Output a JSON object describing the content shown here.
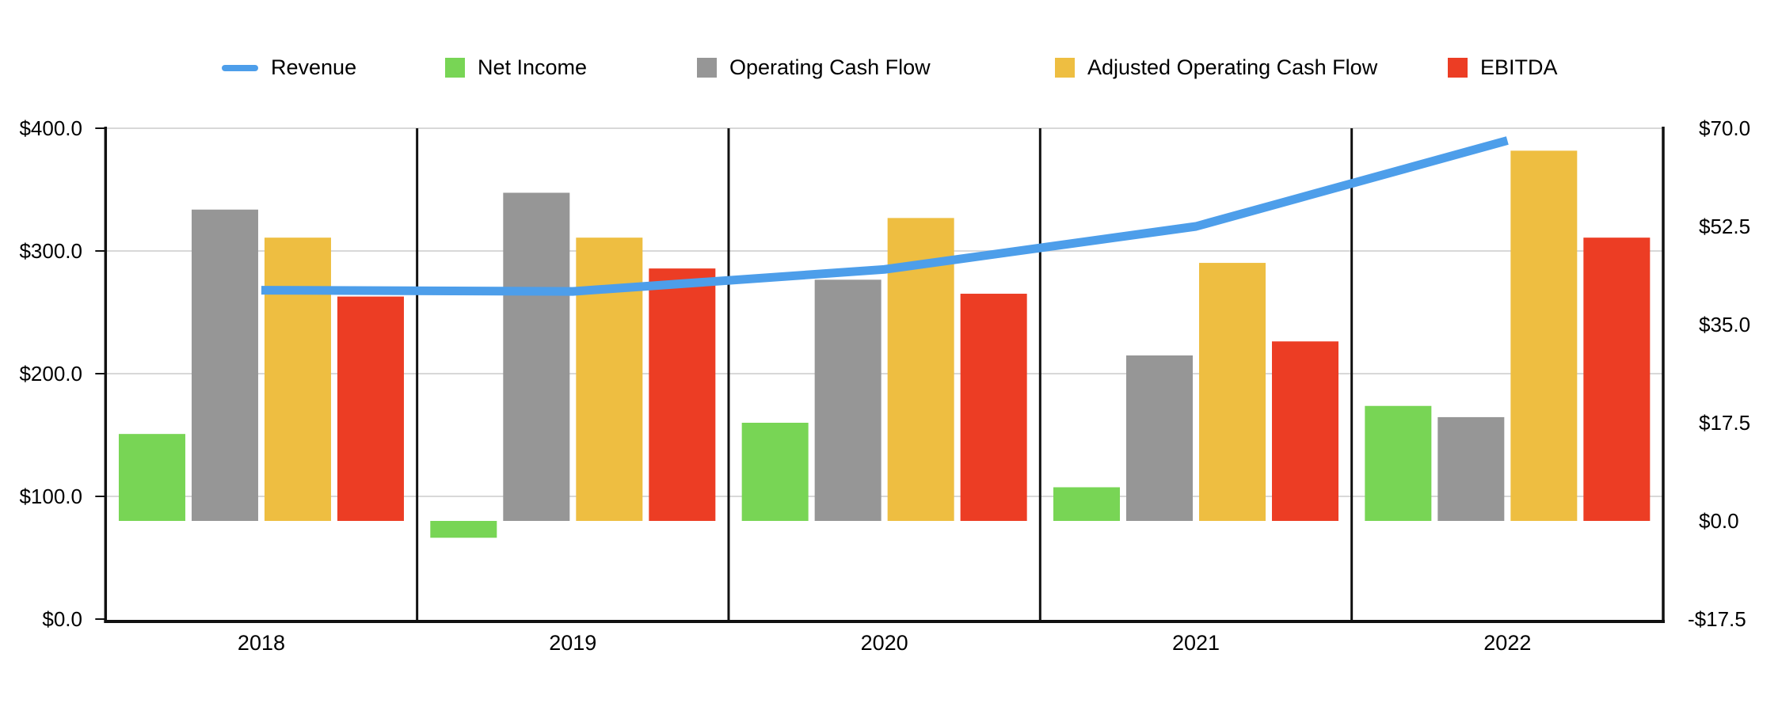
{
  "legend": {
    "items": [
      {
        "label": "Revenue",
        "swatch": "line",
        "color": "#4D9EEA"
      },
      {
        "label": "Net Income",
        "swatch": "box",
        "color": "#78D555"
      },
      {
        "label": "Operating Cash Flow",
        "swatch": "box",
        "color": "#969696"
      },
      {
        "label": "Adjusted Operating Cash Flow",
        "swatch": "box",
        "color": "#EEBE41"
      },
      {
        "label": "EBITDA",
        "swatch": "box",
        "color": "#EC3D24"
      }
    ]
  },
  "chart_data": {
    "type": "bar",
    "subtype": "combo-line-and-bar",
    "categories": [
      "2018",
      "2019",
      "2020",
      "2021",
      "2022"
    ],
    "series": [
      {
        "name": "Revenue",
        "render": "line",
        "axis": "left",
        "color": "#4D9EEA",
        "values": [
          268,
          267,
          285,
          320,
          390
        ]
      },
      {
        "name": "Net Income",
        "render": "bar",
        "axis": "right",
        "color": "#78D555",
        "values": [
          15.5,
          -3,
          17.5,
          6,
          20.5
        ]
      },
      {
        "name": "Operating Cash Flow",
        "render": "bar",
        "axis": "right",
        "color": "#969696",
        "values": [
          55.5,
          58.5,
          43,
          29.5,
          18.5
        ]
      },
      {
        "name": "Adjusted Operating Cash Flow",
        "render": "bar",
        "axis": "right",
        "color": "#EEBE41",
        "values": [
          50.5,
          50.5,
          54,
          46,
          66
        ]
      },
      {
        "name": "EBITDA",
        "render": "bar",
        "axis": "right",
        "color": "#EC3D24",
        "values": [
          40,
          45,
          40.5,
          32,
          50.5
        ]
      }
    ],
    "left_axis": {
      "ticks": [
        "$400.0",
        "$300.0",
        "$200.0",
        "$100.0",
        "$0.0"
      ],
      "min": 0,
      "max": 400
    },
    "right_axis": {
      "ticks": [
        "$70.0",
        "$52.5",
        "$35.0",
        "$17.5",
        "$0.0",
        "-$17.5"
      ],
      "min": -17.5,
      "max": 70
    },
    "grid": true,
    "legend_position": "top",
    "colors": {
      "grid": "#D8D8D8",
      "axis": "#111111",
      "background": "#FFFFFF"
    }
  }
}
